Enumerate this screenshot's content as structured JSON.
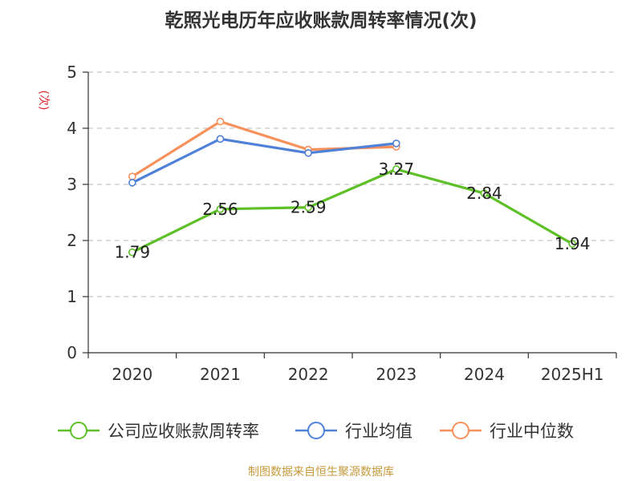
{
  "title": "乾照光电历年应收账款周转率情况(次)",
  "source": "制图数据来自恒生聚源数据库",
  "chart_data": {
    "type": "line",
    "title": "乾照光电历年应收账款周转率情况(次)",
    "xlabel": "",
    "ylabel": "(次)",
    "categories": [
      "2020",
      "2021",
      "2022",
      "2023",
      "2024",
      "2025H1"
    ],
    "ylim": [
      0,
      5
    ],
    "yticks": [
      0,
      1,
      2,
      3,
      4,
      5
    ],
    "grid": true,
    "legend_position": "bottom",
    "series": [
      {
        "name": "公司应收账款周转率",
        "color": "#5cc026",
        "values": [
          1.79,
          2.56,
          2.59,
          3.27,
          2.84,
          1.94
        ],
        "labels": [
          "1.79",
          "2.56",
          "2.59",
          "3.27",
          "2.84",
          "1.94"
        ]
      },
      {
        "name": "行业均值",
        "color": "#4f81d8",
        "values": [
          3.03,
          3.81,
          3.56,
          3.73,
          null,
          null
        ]
      },
      {
        "name": "行业中位数",
        "color": "#f7905a",
        "values": [
          3.14,
          4.12,
          3.62,
          3.67,
          null,
          null
        ]
      }
    ]
  }
}
